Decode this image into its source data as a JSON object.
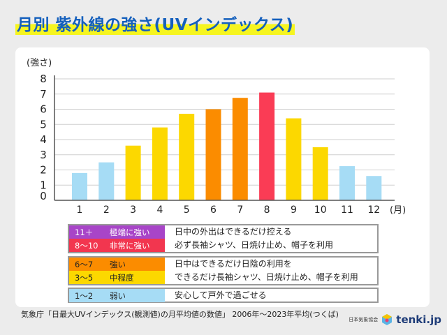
{
  "title": "月別 紫外線の強さ(UVインデックス)",
  "chart_data": {
    "type": "bar",
    "ylabel": "(強さ)",
    "xunit": "(月)",
    "categories": [
      "1",
      "2",
      "3",
      "4",
      "5",
      "6",
      "7",
      "8",
      "9",
      "10",
      "11",
      "12"
    ],
    "values": [
      1.8,
      2.5,
      3.6,
      4.8,
      5.7,
      6.0,
      6.75,
      7.1,
      5.4,
      3.5,
      2.25,
      1.6
    ],
    "bar_colors": [
      "#a6dcf5",
      "#a6dcf5",
      "#fcd800",
      "#fcd800",
      "#fcd800",
      "#fb8c00",
      "#fb8c00",
      "#fa3c55",
      "#fcd800",
      "#fcd800",
      "#a6dcf5",
      "#a6dcf5"
    ],
    "ylim": [
      0,
      8
    ],
    "yticks": [
      "0",
      "1",
      "2",
      "3",
      "4",
      "5",
      "6",
      "7",
      "8"
    ],
    "grid": true
  },
  "legend": [
    {
      "rows": [
        {
          "range": "11＋",
          "level": "極端に強い",
          "color": "#a845c8"
        },
        {
          "range": "8～10",
          "level": "非常に強い",
          "color": "#f2364f"
        }
      ],
      "lines": [
        "日中の外出はできるだけ控える",
        "必ず長袖シャツ、日焼け止め、帽子を利用"
      ]
    },
    {
      "rows": [
        {
          "range": "6～7",
          "level": "強い",
          "color": "#fb8c00"
        },
        {
          "range": "3～5",
          "level": "中程度",
          "color": "#fcd800"
        }
      ],
      "lines": [
        "日中はできるだけ日陰の利用を",
        "できるだけ長袖シャツ、日焼け止め、帽子を利用"
      ]
    },
    {
      "rows": [
        {
          "range": "1～2",
          "level": "弱い",
          "color": "#a6dcf5"
        }
      ],
      "lines": [
        "安心して戸外で過ごせる"
      ]
    }
  ],
  "footer": "気象庁「日最大UVインデックス(観測値)の月平均値の数値」 2006年～2023年平均(つくば)",
  "logo": {
    "org": "日本気象協会",
    "brand": "tenki.jp"
  }
}
